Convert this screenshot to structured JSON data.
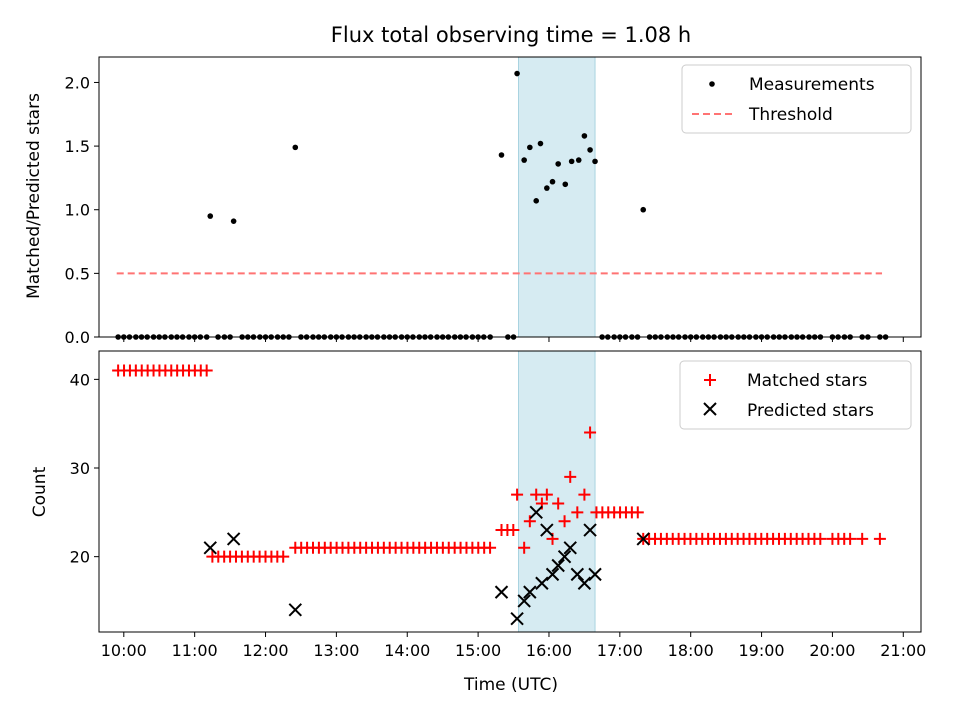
{
  "colors": {
    "matched": "#ff0000",
    "predicted": "#000000",
    "threshold": "#ff7373",
    "span": "#add8e6",
    "measurement": "#000000"
  },
  "chart_data": {
    "type": "scatter",
    "title": "Flux total observing time = 1.08 h",
    "xlabel": "Time (UTC)",
    "xlim": [
      9.65,
      21.25
    ],
    "x_ticks": [
      10,
      11,
      12,
      13,
      14,
      15,
      16,
      17,
      18,
      19,
      20,
      21
    ],
    "x_tick_labels": [
      "10:00",
      "11:00",
      "12:00",
      "13:00",
      "14:00",
      "15:00",
      "16:00",
      "17:00",
      "18:00",
      "19:00",
      "20:00",
      "21:00"
    ],
    "highlight_span": [
      15.57,
      16.65
    ],
    "top": {
      "ylabel": "Matched/Predicted stars",
      "ylim": [
        0,
        2.2
      ],
      "y_ticks": [
        0.0,
        0.5,
        1.0,
        1.5,
        2.0
      ],
      "y_tick_labels": [
        "0.0",
        "0.5",
        "1.0",
        "1.5",
        "2.0"
      ],
      "legend": [
        "Measurements",
        "Threshold"
      ],
      "threshold": {
        "x": [
          9.9,
          20.7
        ],
        "y": 0.5
      },
      "zero_measurements": [
        9.92,
        10.0,
        10.08,
        10.17,
        10.25,
        10.33,
        10.42,
        10.5,
        10.58,
        10.67,
        10.75,
        10.83,
        10.92,
        11.0,
        11.08,
        11.17,
        11.33,
        11.42,
        11.5,
        11.67,
        11.75,
        11.83,
        11.92,
        12.0,
        12.08,
        12.17,
        12.25,
        12.33,
        12.5,
        12.58,
        12.67,
        12.75,
        12.83,
        12.92,
        13.0,
        13.08,
        13.17,
        13.25,
        13.33,
        13.42,
        13.5,
        13.58,
        13.67,
        13.75,
        13.83,
        13.92,
        14.0,
        14.08,
        14.17,
        14.25,
        14.33,
        14.42,
        14.5,
        14.58,
        14.67,
        14.75,
        14.83,
        14.92,
        15.0,
        15.08,
        15.17,
        15.42,
        15.5,
        16.75,
        16.83,
        16.92,
        17.0,
        17.08,
        17.17,
        17.25,
        17.42,
        17.5,
        17.58,
        17.67,
        17.75,
        17.83,
        17.92,
        18.0,
        18.08,
        18.17,
        18.25,
        18.33,
        18.42,
        18.5,
        18.58,
        18.67,
        18.75,
        18.83,
        18.92,
        19.0,
        19.08,
        19.17,
        19.25,
        19.33,
        19.42,
        19.5,
        19.58,
        19.67,
        19.75,
        19.83,
        20.0,
        20.08,
        20.17,
        20.25,
        20.42,
        20.5,
        20.67,
        20.75
      ],
      "nonzero_measurements": {
        "x": [
          11.22,
          11.55,
          12.42,
          15.33,
          15.55,
          15.65,
          15.73,
          15.82,
          15.88,
          15.97,
          16.05,
          16.13,
          16.23,
          16.32,
          16.42,
          16.5,
          16.58,
          16.65,
          17.33
        ],
        "y": [
          0.95,
          0.91,
          1.49,
          1.43,
          2.07,
          1.39,
          1.49,
          1.07,
          1.52,
          1.17,
          1.22,
          1.36,
          1.2,
          1.38,
          1.39,
          1.58,
          1.47,
          1.38,
          1.0
        ]
      }
    },
    "bottom": {
      "ylabel": "Count",
      "ylim": [
        11.5,
        43.2
      ],
      "y_ticks": [
        20,
        30,
        40
      ],
      "y_tick_labels": [
        "20",
        "30",
        "40"
      ],
      "legend": [
        "Matched stars",
        "Predicted stars"
      ],
      "matched_runs": [
        {
          "x0": 9.92,
          "x1": 11.17,
          "step": 0.0833,
          "y": 41
        },
        {
          "x0": 11.25,
          "x1": 12.33,
          "step": 0.0833,
          "y": 20
        },
        {
          "x0": 12.42,
          "x1": 15.17,
          "step": 0.0833,
          "y": 21
        },
        {
          "x0": 15.33,
          "x1": 15.5,
          "step": 0.0833,
          "y": 23
        },
        {
          "x0": 16.67,
          "x1": 17.33,
          "step": 0.0833,
          "y": 25
        },
        {
          "x0": 17.33,
          "x1": 19.83,
          "step": 0.0833,
          "y": 22
        },
        {
          "x0": 20.0,
          "x1": 20.25,
          "step": 0.0833,
          "y": 22
        },
        {
          "x0": 20.42,
          "x1": 20.5,
          "step": 0.0833,
          "y": 22
        },
        {
          "x0": 20.67,
          "x1": 20.75,
          "step": 0.0833,
          "y": 22
        }
      ],
      "matched_points": {
        "x": [
          15.55,
          15.65,
          15.73,
          15.82,
          15.9,
          15.97,
          16.05,
          16.13,
          16.22,
          16.3,
          16.4,
          16.5,
          16.58
        ],
        "y": [
          27,
          21,
          24,
          27,
          26,
          27,
          22,
          26,
          24,
          29,
          25,
          27,
          34
        ]
      },
      "predicted": {
        "x": [
          11.22,
          11.55,
          12.42,
          15.33,
          15.55,
          15.65,
          15.73,
          15.82,
          15.9,
          15.97,
          16.05,
          16.13,
          16.22,
          16.3,
          16.4,
          16.5,
          16.58,
          16.65,
          17.33
        ],
        "y": [
          21,
          22,
          14,
          16,
          13,
          15,
          16,
          25,
          17,
          23,
          18,
          19,
          20,
          21,
          18,
          17,
          23,
          18,
          22
        ]
      }
    }
  }
}
